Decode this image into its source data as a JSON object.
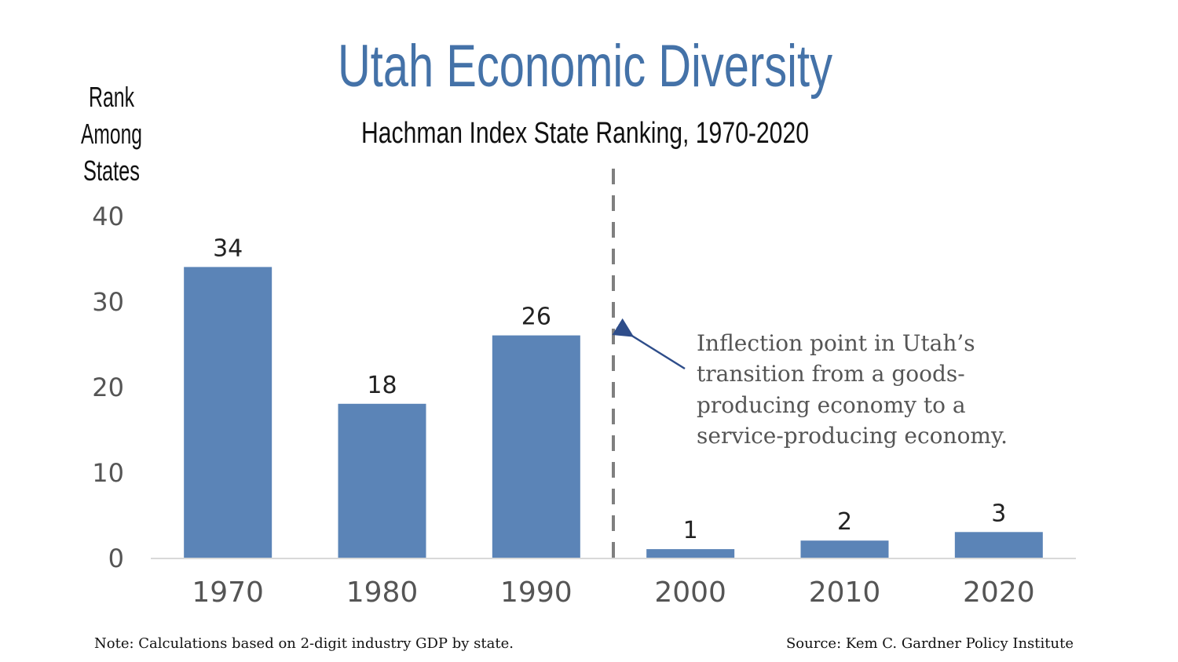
{
  "chart_data": {
    "type": "bar",
    "title": "Utah Economic Diversity",
    "subtitle": "Hachman Index State Ranking, 1970-2020",
    "ylabel": [
      "Rank",
      "Among",
      "States"
    ],
    "categories": [
      "1970",
      "1980",
      "1990",
      "2000",
      "2010",
      "2020"
    ],
    "values": [
      34,
      18,
      26,
      1,
      2,
      3
    ],
    "ylim": [
      0,
      40
    ],
    "yticks": [
      0,
      10,
      20,
      30,
      40
    ],
    "grid": false,
    "bar_color": "#5b84b7",
    "inflection_after_category": "1990",
    "annotation": [
      "Inflection point in Utah’s",
      "transition from a goods-",
      "producing economy to a",
      "service-producing economy."
    ]
  },
  "footer": {
    "note": "Note: Calculations based on 2-digit industry GDP by state.",
    "source": "Source:  Kem C. Gardner Policy Institute"
  },
  "colors": {
    "title": "#4472a8",
    "arrow": "#2e4d8a",
    "divider": "#7f7f7f",
    "axis": "#d9d9d9"
  }
}
